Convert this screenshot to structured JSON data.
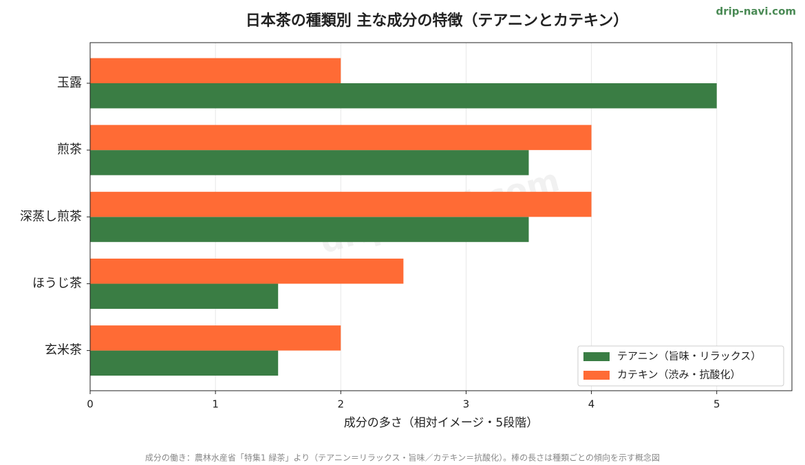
{
  "chart_data": {
    "type": "barh",
    "title": "日本茶の種類別 主な成分の特徴（テアニンとカテキン）",
    "brand": "drip-navi.com",
    "watermark": "drip-navi.com",
    "xlabel": "成分の多さ（相対イメージ・5段階）",
    "note": "成分の働き：農林水産省「特集1 緑茶」より（テアニン＝リラックス・旨味／カテキン＝抗酸化）。棒の長さは種類ごとの傾向を示す概念図",
    "categories": [
      "玉露",
      "煎茶",
      "深蒸し煎茶",
      "ほうじ茶",
      "玄米茶"
    ],
    "series": [
      {
        "name": "テアニン（旨味・リラックス）",
        "color": "#3a7d44",
        "values": [
          5,
          3.5,
          3.5,
          1.5,
          1.5
        ]
      },
      {
        "name": "カテキン（渋み・抗酸化）",
        "color": "#ff6b35",
        "values": [
          2,
          4,
          4,
          2.5,
          2
        ]
      }
    ],
    "xlim": [
      0,
      5.6
    ],
    "xticks": [
      0,
      1,
      2,
      3,
      4,
      5
    ],
    "grid": true,
    "legend": "lower right"
  }
}
